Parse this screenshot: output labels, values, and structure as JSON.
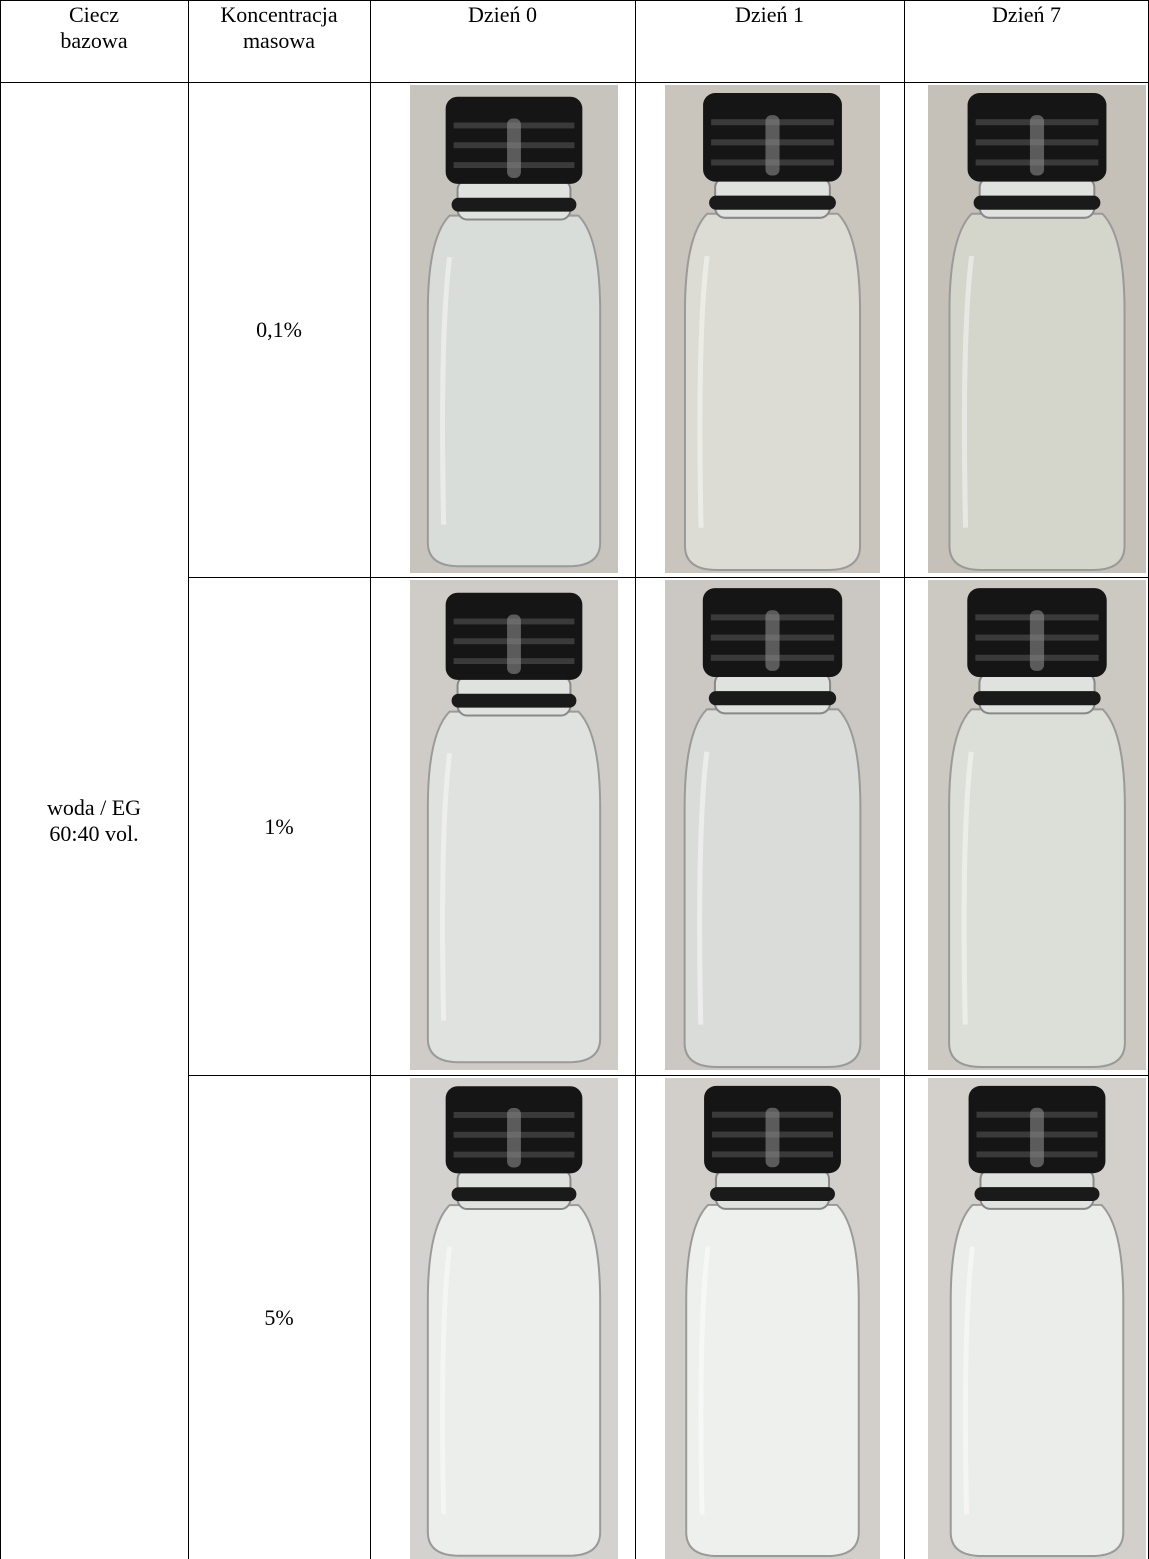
{
  "table": {
    "header": [
      "Ciecz\nbazowa",
      "Koncentracja\nmasowa",
      "Dzień 0",
      "Dzień 1",
      "Dzień 7"
    ],
    "base_fluid": "woda / EG\n60:40 vol.",
    "rows": [
      [
        "0,1%"
      ],
      [
        "1%"
      ],
      [
        "5%"
      ]
    ]
  }
}
